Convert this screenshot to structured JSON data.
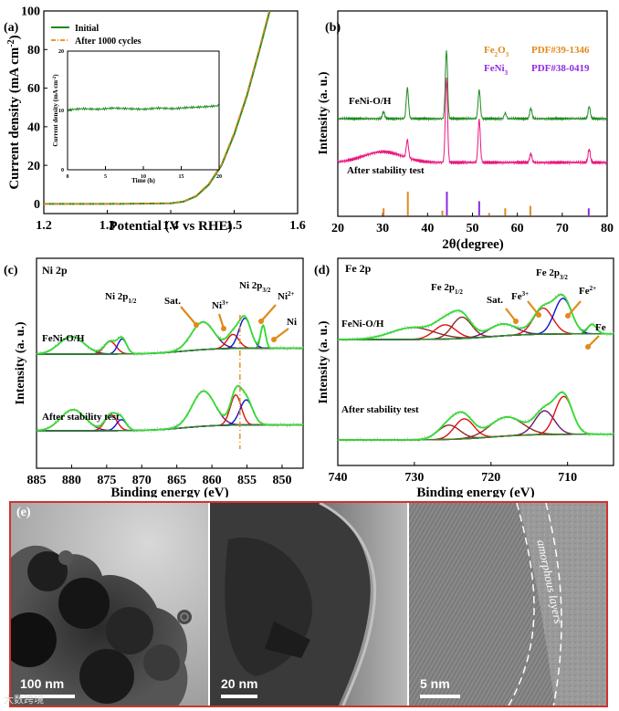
{
  "figure_colors": {
    "green": "#1f8a1f",
    "orange": "#e08a1a",
    "pink": "#e8177e",
    "purple": "#8e2be2",
    "envelope": "#33dd33",
    "red": "#dd1111",
    "blue": "#1111cc",
    "darkpurple": "#6a1b6a",
    "brown": "#8b2a2a",
    "baseline": "#2a8a2a",
    "frame": "#d2322d"
  },
  "chart_data": [
    {
      "panel": "(a)",
      "type": "line",
      "xlabel": "Potential (V vs RHE)",
      "ylabel": "Current density (mA cm-2)",
      "ylabel_main": "Current density (mA cm",
      "ylabel_sup": "-2",
      "ylabel_close": ")",
      "xlim": [
        1.2,
        1.6
      ],
      "ylim": [
        0,
        100
      ],
      "xticks": [
        "1.2",
        "1.3",
        "1.4",
        "1.5",
        "1.6"
      ],
      "yticks": [
        "0",
        "20",
        "40",
        "60",
        "80",
        "100"
      ],
      "series": [
        {
          "name": "Initial",
          "x": [
            1.2,
            1.3,
            1.4,
            1.42,
            1.44,
            1.46,
            1.48,
            1.5,
            1.52,
            1.54,
            1.556
          ],
          "values": [
            0,
            0,
            0.3,
            1.2,
            4,
            10,
            20,
            36,
            56,
            80,
            100
          ]
        },
        {
          "name": "After 1000 cycles",
          "x": [
            1.2,
            1.3,
            1.4,
            1.42,
            1.44,
            1.46,
            1.48,
            1.5,
            1.52,
            1.54,
            1.555
          ],
          "values": [
            0,
            0,
            0.4,
            1.4,
            4.3,
            10.5,
            20.5,
            37,
            57,
            81,
            100
          ]
        }
      ],
      "inset": {
        "type": "line",
        "xlabel": "Time (h)",
        "ylabel": "Current density (mA cm-2)",
        "ylabel_main": "Current density (mA cm",
        "ylabel_sup": "-2",
        "ylabel_close": ")",
        "xlim": [
          0,
          20
        ],
        "ylim": [
          0,
          20
        ],
        "xticks": [
          "0",
          "5",
          "10",
          "15",
          "20"
        ],
        "yticks": [
          "0",
          "10",
          "20"
        ],
        "series": [
          {
            "name": "stability",
            "x": [
              0,
              2,
              4,
              6,
              8,
              10,
              12,
              14,
              16,
              18,
              20
            ],
            "values": [
              10.1,
              10.3,
              10.2,
              10.4,
              10.3,
              10.2,
              10.4,
              10.3,
              10.5,
              10.6,
              10.8
            ]
          }
        ]
      }
    },
    {
      "panel": "(b)",
      "type": "line",
      "xlabel": "2θ(degree)",
      "ylabel": "Intensity (a. u.)",
      "xlim": [
        20,
        80
      ],
      "xticks": [
        "20",
        "30",
        "40",
        "50",
        "60",
        "70",
        "80"
      ],
      "series": [
        {
          "name": "FeNi-O/H",
          "peaks": [
            [
              35.5,
              0.45
            ],
            [
              44.2,
              1.0
            ],
            [
              51.5,
              0.42
            ],
            [
              63,
              0.15
            ],
            [
              76,
              0.18
            ],
            [
              30.2,
              0.1
            ],
            [
              57.3,
              0.08
            ]
          ]
        },
        {
          "name": "After stability test",
          "peaks": [
            [
              35.5,
              0.2
            ],
            [
              44.2,
              0.95
            ],
            [
              51.5,
              0.48
            ],
            [
              63,
              0.1
            ],
            [
              76,
              0.15
            ]
          ]
        }
      ],
      "references": [
        {
          "name": "Fe2O3",
          "label_main": "Fe",
          "label_sub": "2",
          "label_main2": "O",
          "label_sub2": "3",
          "pdf": "PDF#39-1346",
          "lines": [
            [
              30.2,
              0.3
            ],
            [
              35.6,
              1.0
            ],
            [
              43.3,
              0.2
            ],
            [
              53.7,
              0.1
            ],
            [
              57.3,
              0.3
            ],
            [
              62.9,
              0.4
            ]
          ]
        },
        {
          "name": "FeNi3",
          "label_main": "FeNi",
          "label_sub": "3",
          "pdf": "PDF#38-0419",
          "lines": [
            [
              44.3,
              1.0
            ],
            [
              51.5,
              0.6
            ],
            [
              75.9,
              0.3
            ]
          ]
        }
      ],
      "annotations": [
        "FeNi-O/H",
        "After stability test"
      ]
    },
    {
      "panel": "(c)",
      "type": "line",
      "title": "Ni 2p",
      "xlabel": "Binding energy (eV)",
      "ylabel": "Intensity (a. u.)",
      "xlim": [
        885,
        847
      ],
      "xticks": [
        "885",
        "880",
        "875",
        "870",
        "865",
        "860",
        "855",
        "850"
      ],
      "marker_x": 856,
      "labels": {
        "ni2p12": [
          "Ni 2p",
          "1/2"
        ],
        "sat": "Sat.",
        "ni3": [
          "Ni",
          "3+"
        ],
        "ni2p32": [
          "Ni 2p",
          "3/2"
        ],
        "ni2": [
          "Ni",
          "2+"
        ],
        "ni": "Ni"
      },
      "series": [
        {
          "name": "FeNi-O/H",
          "components": [
            [
              880,
              2.5,
              0.35
            ],
            [
              874.5,
              1.2,
              0.25
            ],
            [
              872.8,
              0.9,
              0.3
            ],
            [
              861.3,
              2.3,
              0.55
            ],
            [
              857,
              1.2,
              0.28
            ],
            [
              855.3,
              1.2,
              0.6
            ],
            [
              852.7,
              0.5,
              0.45
            ]
          ]
        },
        {
          "name": "After stability test",
          "components": [
            [
              879.8,
              2.5,
              0.42
            ],
            [
              874.4,
              1.2,
              0.32
            ],
            [
              872.9,
              1.0,
              0.22
            ],
            [
              861.2,
              2.3,
              0.7
            ],
            [
              856.6,
              1.1,
              0.6
            ],
            [
              855.1,
              1.3,
              0.5
            ]
          ]
        }
      ],
      "annotations": [
        "FeNi-O/H",
        "After stability test"
      ]
    },
    {
      "panel": "(d)",
      "type": "line",
      "title": "Fe 2p",
      "xlabel": "Binding energy (eV)",
      "ylabel": "Intensity (a. u.)",
      "xlim": [
        740,
        704
      ],
      "xticks": [
        "740",
        "730",
        "720",
        "710"
      ],
      "labels": {
        "fe2p12": [
          "Fe 2p",
          "1/2"
        ],
        "sat": "Sat.",
        "fe3": [
          "Fe",
          "3+"
        ],
        "fe2p32": [
          "Fe 2p",
          "3/2"
        ],
        "fe2": [
          "Fe",
          "2+"
        ],
        "fe": "Fe"
      },
      "series": [
        {
          "name": "FeNi-O/H",
          "components": [
            [
              730.2,
              4,
              0.25
            ],
            [
              726,
              2,
              0.3
            ],
            [
              723.8,
              1.8,
              0.45
            ],
            [
              718.5,
              2.5,
              0.25
            ],
            [
              713.2,
              1.8,
              0.55
            ],
            [
              710.6,
              1.6,
              0.75
            ],
            [
              706.8,
              0.8,
              0.2
            ]
          ]
        },
        {
          "name": "After stability test",
          "components": [
            [
              725.5,
              2,
              0.3
            ],
            [
              723.5,
              1.8,
              0.42
            ],
            [
              718,
              3,
              0.4
            ],
            [
              713,
              1.8,
              0.5
            ],
            [
              710.5,
              1.6,
              0.8
            ]
          ]
        }
      ],
      "annotations": [
        "FeNi-O/H",
        "After stability test"
      ]
    }
  ],
  "panel_e": {
    "label": "(e)",
    "panels": [
      {
        "scale": "100 nm"
      },
      {
        "scale": "20 nm"
      },
      {
        "scale": "5 nm",
        "annotation": "amorphous layers"
      }
    ]
  },
  "watermark": "大数跨境"
}
